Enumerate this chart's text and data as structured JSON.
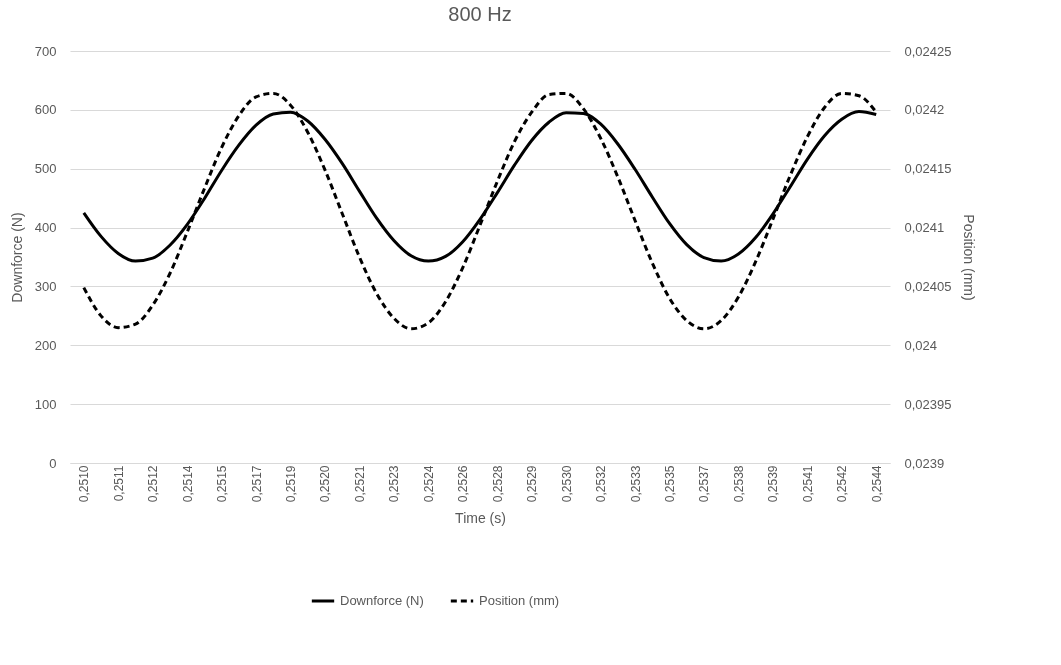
{
  "chart_data": {
    "type": "line",
    "title": "800 Hz",
    "xlabel": "Time (s)",
    "ylabel": "Downforce (N)",
    "y2label": "Position (mm)",
    "categories": [
      "0,2510",
      null,
      "0,2511",
      null,
      "0,2512",
      null,
      "0,2514",
      null,
      "0,2515",
      null,
      "0,2517",
      null,
      "0,2519",
      null,
      "0,2520",
      null,
      "0,2521",
      null,
      "0,2523",
      null,
      "0,2524",
      null,
      "0,2526",
      null,
      "0,2528",
      null,
      "0,2529",
      null,
      "0,2530",
      null,
      "0,2532",
      null,
      "0,2533",
      null,
      "0,2535",
      null,
      "0,2537",
      null,
      "0,2538",
      null,
      "0,2539",
      null,
      "0,2541",
      null,
      "0,2542",
      null,
      "0,2544"
    ],
    "series": [
      {
        "name": "Downforce (N)",
        "color": "#000000",
        "line_style": "solid",
        "values": [
          425,
          385,
          356,
          343,
          348,
          370,
          405,
          449,
          497,
          540,
          574,
          593,
          596,
          581,
          550,
          509,
          462,
          416,
          378,
          352,
          343,
          351,
          376,
          414,
          459,
          506,
          548,
          579,
          595,
          594,
          576,
          542,
          499,
          452,
          407,
          371,
          349,
          343,
          355,
          383,
          423,
          469,
          516,
          556,
          584,
          597,
          592
        ]
      },
      {
        "name": "Position (mm)",
        "color": "#000000",
        "line_style": "dashed",
        "axis": "y2",
        "values": [
          0.024049,
          0.024025,
          0.024015,
          0.024018,
          0.024034,
          0.024061,
          0.024096,
          0.024133,
          0.024168,
          0.024195,
          0.024211,
          0.024214,
          0.024204,
          0.024181,
          0.024149,
          0.024112,
          0.024075,
          0.024044,
          0.024023,
          0.024014,
          0.024019,
          0.024037,
          0.024066,
          0.024102,
          0.024139,
          0.024173,
          0.024198,
          0.024213,
          0.024214,
          0.024201,
          0.024176,
          0.024143,
          0.024106,
          0.02407,
          0.02404,
          0.024021,
          0.024014,
          0.024021,
          0.024041,
          0.024071,
          0.024107,
          0.024144,
          0.024177,
          0.024202,
          0.024214,
          0.024212,
          0.024198
        ]
      }
    ],
    "ylim": [
      0,
      700
    ],
    "yticks": [
      0,
      100,
      200,
      300,
      400,
      500,
      600,
      700
    ],
    "y2lim": [
      0.0239,
      0.02425
    ],
    "y2ticks": [
      {
        "value": 0.0239,
        "label": "0,0239"
      },
      {
        "value": 0.02395,
        "label": "0,02395"
      },
      {
        "value": 0.024,
        "label": "0,024"
      },
      {
        "value": 0.02405,
        "label": "0,02405"
      },
      {
        "value": 0.0241,
        "label": "0,0241"
      },
      {
        "value": 0.02415,
        "label": "0,02415"
      },
      {
        "value": 0.0242,
        "label": "0,0242"
      },
      {
        "value": 0.02425,
        "label": "0,02425"
      }
    ],
    "grid": "y",
    "legend": "bottom"
  }
}
